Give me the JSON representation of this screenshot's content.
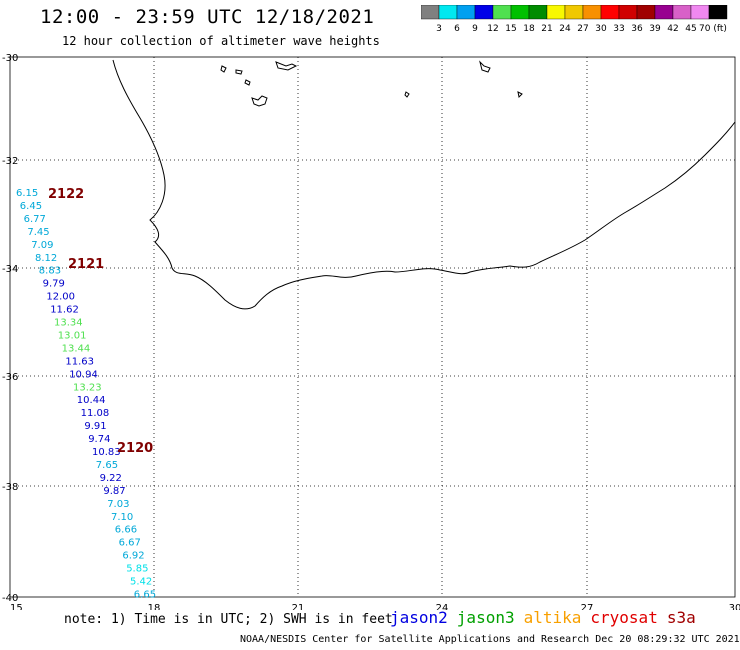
{
  "title": "12:00 - 23:59 UTC 12/18/2021",
  "subtitle": "12 hour collection of altimeter wave heights",
  "colorbar": {
    "colors": [
      "#808080",
      "#00e8f0",
      "#00a0f0",
      "#0000e8",
      "#50e050",
      "#00c000",
      "#008c00",
      "#f8f800",
      "#f0c800",
      "#f89000",
      "#ff0000",
      "#d00000",
      "#a00000",
      "#980090",
      "#d860c8",
      "#f088f0",
      "#000000"
    ],
    "labels": [
      "3",
      "6",
      "9",
      "12",
      "15",
      "18",
      "21",
      "24",
      "27",
      "30",
      "33",
      "36",
      "39",
      "42",
      "45",
      "70 (ft)"
    ]
  },
  "axes": {
    "lon_labels": [
      "15",
      "18",
      "21",
      "24",
      "27",
      "30"
    ],
    "lat_labels": [
      "-30",
      "-32",
      "-34",
      "-36",
      "-38",
      "-40"
    ]
  },
  "tracks": [
    {
      "label": "2122",
      "color": "#800000"
    },
    {
      "label": "2121",
      "color": "#800000"
    },
    {
      "label": "2120",
      "color": "#800000"
    }
  ],
  "observations": [
    {
      "value": "6.15",
      "color": "#00a8d8"
    },
    {
      "value": "6.45",
      "color": "#00a8d8"
    },
    {
      "value": "6.77",
      "color": "#00a8d8"
    },
    {
      "value": "7.45",
      "color": "#00a8d8"
    },
    {
      "value": "7.09",
      "color": "#00a8d8"
    },
    {
      "value": "8.12",
      "color": "#00a8d8"
    },
    {
      "value": "8.83",
      "color": "#00a8d8"
    },
    {
      "value": "9.79",
      "color": "#0000c8"
    },
    {
      "value": "12.00",
      "color": "#0000c8"
    },
    {
      "value": "11.62",
      "color": "#0000c8"
    },
    {
      "value": "13.34",
      "color": "#50e050"
    },
    {
      "value": "13.01",
      "color": "#50e050"
    },
    {
      "value": "13.44",
      "color": "#50e050"
    },
    {
      "value": "11.63",
      "color": "#0000c8"
    },
    {
      "value": "10.94",
      "color": "#0000c8"
    },
    {
      "value": "13.23",
      "color": "#50e050"
    },
    {
      "value": "10.44",
      "color": "#0000c8"
    },
    {
      "value": "11.08",
      "color": "#0000c8"
    },
    {
      "value": "9.91",
      "color": "#0000c8"
    },
    {
      "value": "9.74",
      "color": "#0000c8"
    },
    {
      "value": "10.83",
      "color": "#0000c8"
    },
    {
      "value": "7.65",
      "color": "#00a8d8"
    },
    {
      "value": "9.22",
      "color": "#0000c8"
    },
    {
      "value": "9.87",
      "color": "#0000c8"
    },
    {
      "value": "7.03",
      "color": "#00a8d8"
    },
    {
      "value": "7.10",
      "color": "#00a8d8"
    },
    {
      "value": "6.66",
      "color": "#00a8d8"
    },
    {
      "value": "6.67",
      "color": "#00a8d8"
    },
    {
      "value": "6.92",
      "color": "#00a8d8"
    },
    {
      "value": "5.85",
      "color": "#00e0e8"
    },
    {
      "value": "5.42",
      "color": "#00e0e8"
    },
    {
      "value": "6.65",
      "color": "#00a8d8"
    }
  ],
  "footer": {
    "note": "note: 1) Time is in UTC; 2) SWH is in feet",
    "satellites": [
      {
        "name": "jason2",
        "color": "#0000e0"
      },
      {
        "name": "jason3",
        "color": "#00a000"
      },
      {
        "name": "altika",
        "color": "#f8a000"
      },
      {
        "name": "cryosat",
        "color": "#e00000"
      },
      {
        "name": "s3a",
        "color": "#a00000"
      }
    ],
    "credit": "NOAA/NESDIS Center for Satellite Applications and Research   Dec 20 08:29:32 UTC 2021"
  }
}
